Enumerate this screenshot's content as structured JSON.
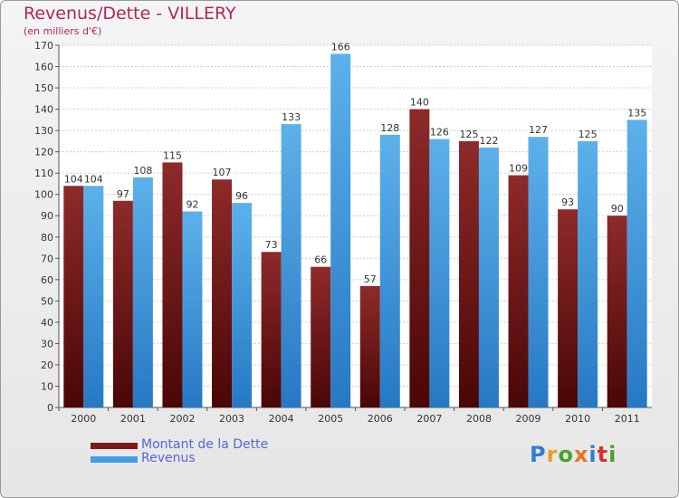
{
  "header": {
    "title": "Revenus/Dette - VILLERY",
    "subtitle": "(en milliers d'€)"
  },
  "chart_data": {
    "type": "bar",
    "title": "Revenus/Dette - VILLERY",
    "ylabel": "(en milliers d'€)",
    "xlabel": "",
    "categories": [
      "2000",
      "2001",
      "2002",
      "2003",
      "2004",
      "2005",
      "2006",
      "2007",
      "2008",
      "2009",
      "2010",
      "2011"
    ],
    "series": [
      {
        "name": "Montant de la Dette",
        "color": "#7a1a1a",
        "values": [
          104,
          97,
          115,
          107,
          73,
          66,
          57,
          140,
          125,
          109,
          93,
          90
        ]
      },
      {
        "name": "Revenus",
        "color": "#3d9ee3",
        "values": [
          104,
          108,
          92,
          96,
          133,
          166,
          128,
          126,
          122,
          127,
          125,
          135
        ]
      }
    ],
    "ylim": [
      0,
      170
    ],
    "yticks": [
      0,
      10,
      20,
      30,
      40,
      50,
      60,
      70,
      80,
      90,
      100,
      110,
      120,
      130,
      140,
      150,
      160,
      170
    ],
    "grid": true,
    "legend": "bottom-left"
  },
  "legend": {
    "items": [
      {
        "label": "Montant de la Dette",
        "color": "#7a1a1a"
      },
      {
        "label": "Revenus",
        "color": "#3d9ee3"
      }
    ]
  },
  "logo": {
    "text": "Proxiti",
    "letter_colors": [
      "#2f7fd0",
      "#e8a020",
      "#49a030",
      "#e8731f",
      "#2f7fd0",
      "#d9302a",
      "#49a030"
    ]
  }
}
